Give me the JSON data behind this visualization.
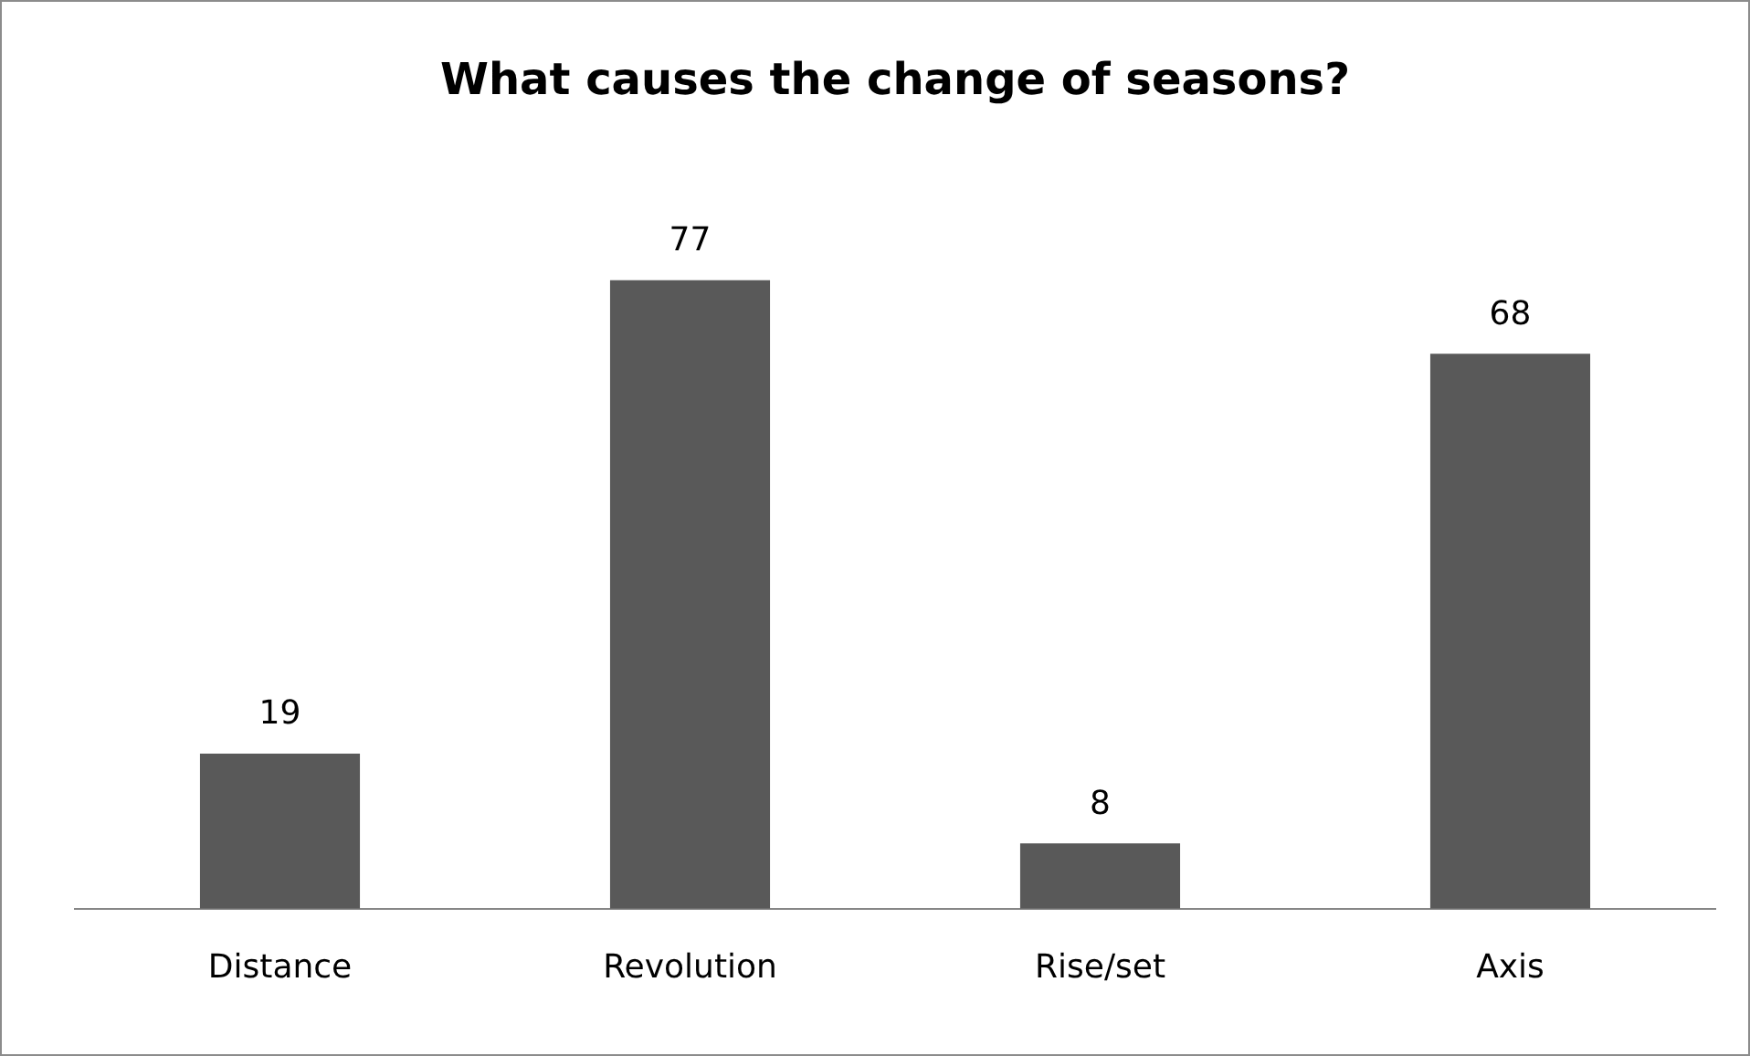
{
  "chart_data": {
    "type": "bar",
    "title": "What causes the change of seasons?",
    "categories": [
      "Distance",
      "Revolution",
      "Rise/set",
      "Axis"
    ],
    "values": [
      19,
      77,
      8,
      68
    ],
    "color": "#595959",
    "data_labels": true,
    "grid": false,
    "legend": false
  }
}
